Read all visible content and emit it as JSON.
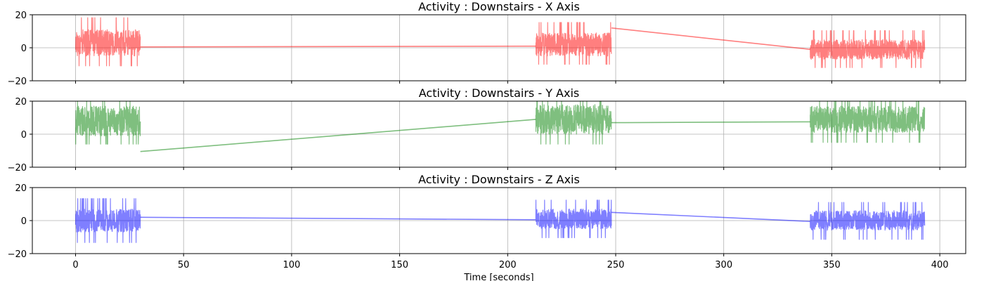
{
  "chart_data": [
    {
      "type": "line",
      "title": "Activity : Downstairs - X Axis",
      "xlabel": "",
      "ylabel": "",
      "xlim": [
        -20,
        412
      ],
      "ylim": [
        -20,
        20
      ],
      "yticks": [
        -20,
        0,
        20
      ],
      "grid": true,
      "series": [
        {
          "color": "#ff0000",
          "alpha": 0.5,
          "segments": [
            {
              "type": "noise",
              "x": [
                0,
                30
              ],
              "center": 3,
              "amp": 8,
              "min": -11,
              "max": 19
            },
            {
              "type": "line",
              "points": [
                [
                  30,
                  0.5
                ],
                [
                  213,
                  1
                ]
              ]
            },
            {
              "type": "noise",
              "x": [
                213,
                248
              ],
              "center": 2,
              "amp": 7,
              "min": -10,
              "max": 16
            },
            {
              "type": "line",
              "points": [
                [
                  248,
                  12
                ],
                [
                  340,
                  -1
                ]
              ]
            },
            {
              "type": "noise",
              "x": [
                340,
                393
              ],
              "center": -1,
              "amp": 6,
              "min": -12,
              "max": 13
            }
          ]
        }
      ]
    },
    {
      "type": "line",
      "title": "Activity : Downstairs - Y Axis",
      "xlabel": "",
      "ylabel": "",
      "xlim": [
        -20,
        412
      ],
      "ylim": [
        -20,
        20
      ],
      "yticks": [
        -20,
        0,
        20
      ],
      "grid": true,
      "series": [
        {
          "color": "#008000",
          "alpha": 0.5,
          "segments": [
            {
              "type": "noise",
              "x": [
                0,
                30
              ],
              "center": 8,
              "amp": 9,
              "min": -6,
              "max": 20
            },
            {
              "type": "line",
              "points": [
                [
                  30,
                  -10.5
                ],
                [
                  213,
                  9
                ]
              ]
            },
            {
              "type": "noise",
              "x": [
                213,
                248
              ],
              "center": 9,
              "amp": 9,
              "min": -6,
              "max": 20
            },
            {
              "type": "line",
              "points": [
                [
                  248,
                  7
                ],
                [
                  340,
                  7.5
                ]
              ]
            },
            {
              "type": "noise",
              "x": [
                340,
                393
              ],
              "center": 9,
              "amp": 8,
              "min": -5,
              "max": 20
            }
          ]
        }
      ]
    },
    {
      "type": "line",
      "title": "Activity : Downstairs - Z Axis",
      "xlabel": "Time [seconds]",
      "ylabel": "",
      "xlim": [
        -20,
        412
      ],
      "ylim": [
        -20,
        20
      ],
      "xticks": [
        0,
        50,
        100,
        150,
        200,
        250,
        300,
        350,
        400
      ],
      "yticks": [
        -20,
        0,
        20
      ],
      "grid": true,
      "series": [
        {
          "color": "#0000ff",
          "alpha": 0.5,
          "segments": [
            {
              "type": "noise",
              "x": [
                0,
                30
              ],
              "center": 0,
              "amp": 7,
              "min": -19,
              "max": 15
            },
            {
              "type": "line",
              "points": [
                [
                  30,
                  2
                ],
                [
                  213,
                  0.5
                ]
              ]
            },
            {
              "type": "noise",
              "x": [
                213,
                248
              ],
              "center": 1,
              "amp": 6,
              "min": -13,
              "max": 13
            },
            {
              "type": "line",
              "points": [
                [
                  248,
                  5
                ],
                [
                  340,
                  -0.5
                ]
              ]
            },
            {
              "type": "noise",
              "x": [
                340,
                393
              ],
              "center": 0,
              "amp": 6,
              "min": -14,
              "max": 11
            }
          ]
        }
      ]
    }
  ]
}
